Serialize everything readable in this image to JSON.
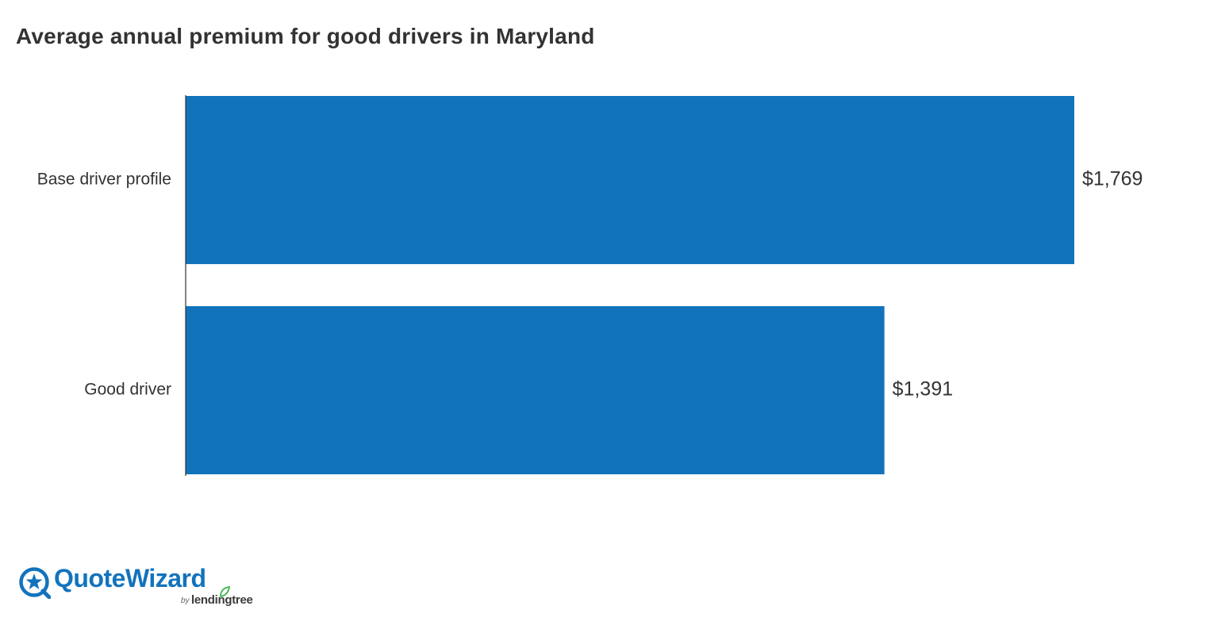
{
  "chart_data": {
    "type": "bar",
    "orientation": "horizontal",
    "title": "Average annual premium for good drivers in Maryland",
    "categories": [
      "Base driver profile",
      "Good driver"
    ],
    "values": [
      1769,
      1391
    ],
    "value_labels": [
      "$1,769",
      "$1,391"
    ],
    "xlim": [
      0,
      1769
    ],
    "grid": false,
    "bar_color": "#1174bb"
  },
  "branding": {
    "brand_name": "QuoteWizard",
    "by_text": "by",
    "parent_name": "lendingtree",
    "logo_mark": "wizard-star-icon",
    "leaf": "leaf-icon",
    "brand_color": "#1273bd",
    "leaf_color": "#3bb54a"
  }
}
